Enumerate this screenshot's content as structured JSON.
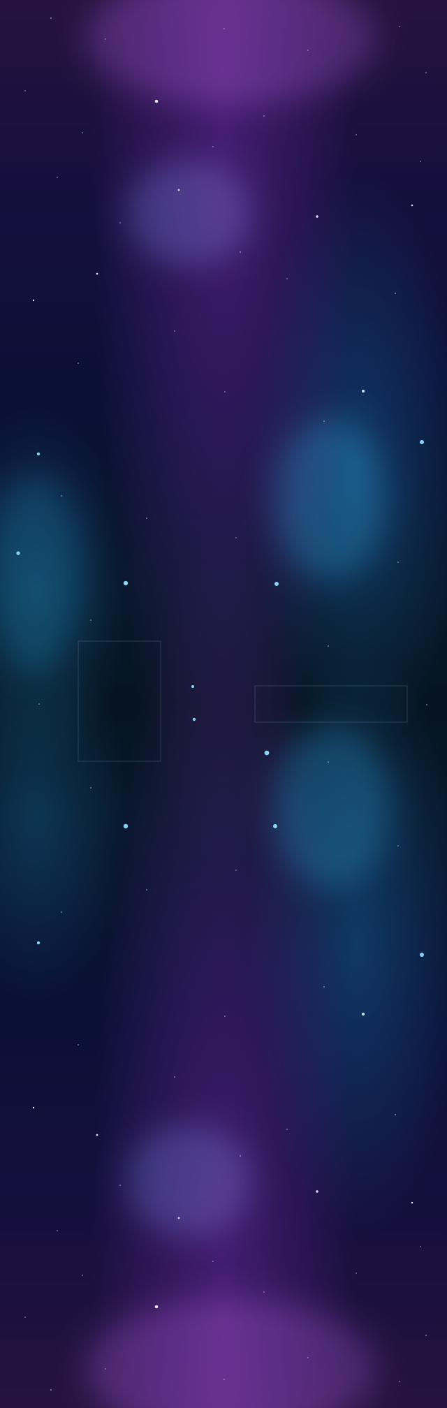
{
  "scene": {
    "subject": "",
    "dominant_colors": [
      "#25123f",
      "#0b1037",
      "#07172b",
      "#061421"
    ],
    "accent_colors": [
      "#76d6ff",
      "#6fa8dc",
      "#7b3ea8"
    ]
  }
}
